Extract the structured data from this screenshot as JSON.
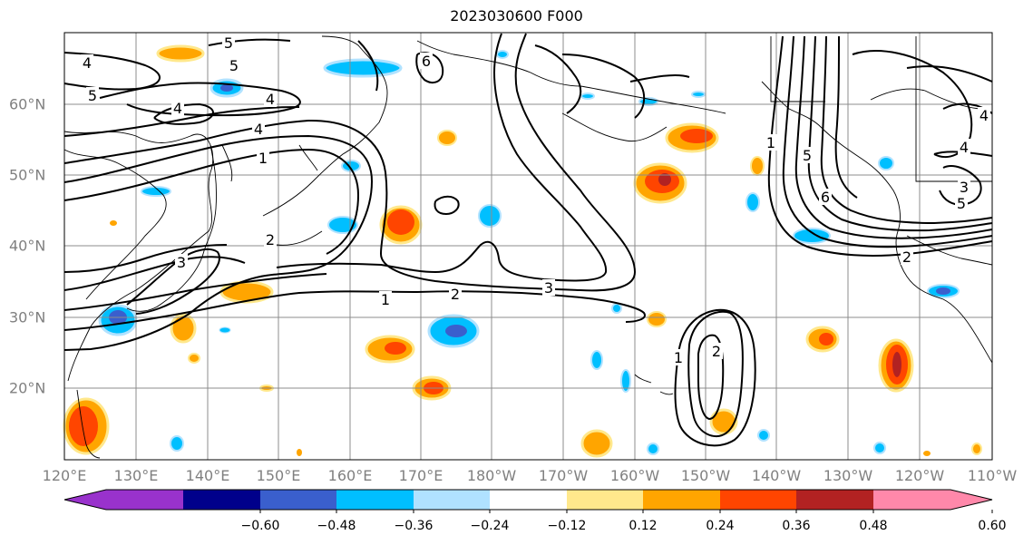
{
  "title": "2023030600 F000",
  "map": {
    "lat_ticks": [
      "60°N",
      "50°N",
      "40°N",
      "30°N",
      "20°N"
    ],
    "lon_ticks": [
      "120°E",
      "130°E",
      "140°E",
      "150°E",
      "160°E",
      "170°E",
      "180°W",
      "170°W",
      "160°W",
      "150°W",
      "140°W",
      "130°W",
      "120°W",
      "110°W"
    ],
    "contour_labels": [
      "1",
      "2",
      "3",
      "4",
      "5",
      "6"
    ],
    "gridlines": true
  },
  "colorbar": {
    "ticks": [
      "−0.60",
      "−0.48",
      "−0.36",
      "−0.24",
      "−0.12",
      "0.12",
      "0.24",
      "0.36",
      "0.48",
      "0.60"
    ],
    "colors": [
      "#9932cc",
      "#00008b",
      "#3a5fcd",
      "#00bfff",
      "#b0e2ff",
      "#ffffff",
      "#ffe88c",
      "#ffa500",
      "#ff4500",
      "#b22222",
      "#ff88aa"
    ],
    "extend": "both"
  }
}
